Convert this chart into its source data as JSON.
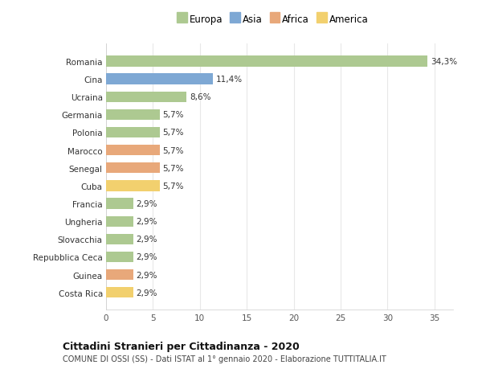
{
  "countries": [
    "Romania",
    "Cina",
    "Ucraina",
    "Germania",
    "Polonia",
    "Marocco",
    "Senegal",
    "Cuba",
    "Francia",
    "Ungheria",
    "Slovacchia",
    "Repubblica Ceca",
    "Guinea",
    "Costa Rica"
  ],
  "values": [
    34.3,
    11.4,
    8.6,
    5.7,
    5.7,
    5.7,
    5.7,
    5.7,
    2.9,
    2.9,
    2.9,
    2.9,
    2.9,
    2.9
  ],
  "continents": [
    "Europa",
    "Asia",
    "Europa",
    "Europa",
    "Europa",
    "Africa",
    "Africa",
    "America",
    "Europa",
    "Europa",
    "Europa",
    "Europa",
    "Africa",
    "America"
  ],
  "labels": [
    "34,3%",
    "11,4%",
    "8,6%",
    "5,7%",
    "5,7%",
    "5,7%",
    "5,7%",
    "5,7%",
    "2,9%",
    "2,9%",
    "2,9%",
    "2,9%",
    "2,9%",
    "2,9%"
  ],
  "colors": {
    "Europa": "#adc991",
    "Asia": "#7ea8d4",
    "Africa": "#e8a87a",
    "America": "#f2d06e"
  },
  "title": "Cittadini Stranieri per Cittadinanza - 2020",
  "subtitle": "COMUNE DI OSSI (SS) - Dati ISTAT al 1° gennaio 2020 - Elaborazione TUTTITALIA.IT",
  "xlim": [
    0,
    37
  ],
  "xticks": [
    0,
    5,
    10,
    15,
    20,
    25,
    30,
    35
  ],
  "background_color": "#ffffff",
  "grid_color": "#e8e8e8",
  "bar_height": 0.6
}
